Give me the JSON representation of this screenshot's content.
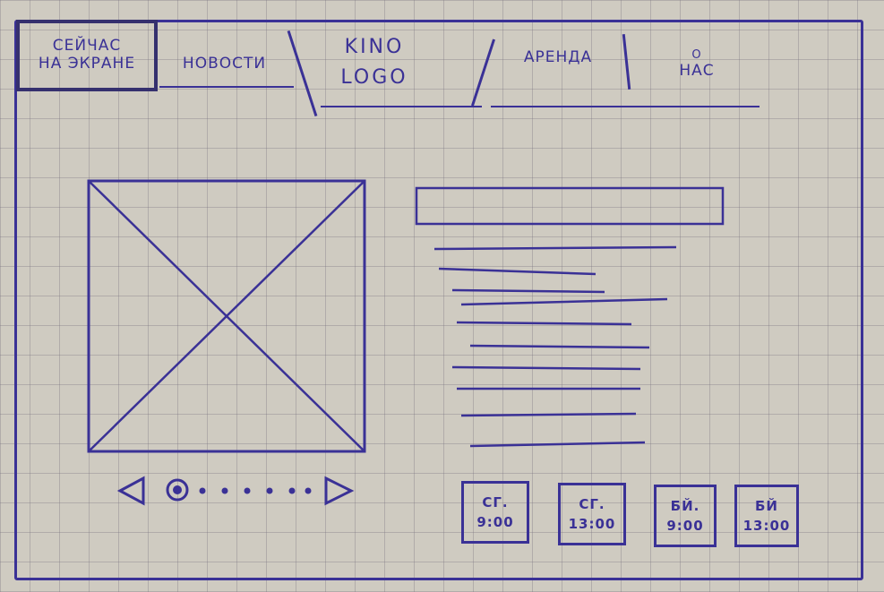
{
  "nav": {
    "items": [
      {
        "line1": "СЕЙЧАС",
        "line2": "НА ЭКРАНЕ",
        "active": true
      },
      {
        "line1": "НОВОСТИ",
        "line2": ""
      },
      {
        "line1": "KINO",
        "line2": "LOGO"
      },
      {
        "line1": "АРЕНДА",
        "line2": ""
      },
      {
        "line1": "О",
        "line2": "НАС"
      }
    ]
  },
  "carousel": {
    "prev_icon": "triangle-left-icon",
    "next_icon": "triangle-right-icon",
    "dot_count": 7,
    "active_index": 0
  },
  "showtimes": [
    {
      "day": "СГ.",
      "time": "9:00"
    },
    {
      "day": "СГ.",
      "time": "13:00"
    },
    {
      "day": "БЙ.",
      "time": "9:00"
    },
    {
      "day": "БЙ",
      "time": "13:00"
    }
  ],
  "colors": {
    "ink": "#3a3196",
    "paper": "#cfcbc1"
  }
}
